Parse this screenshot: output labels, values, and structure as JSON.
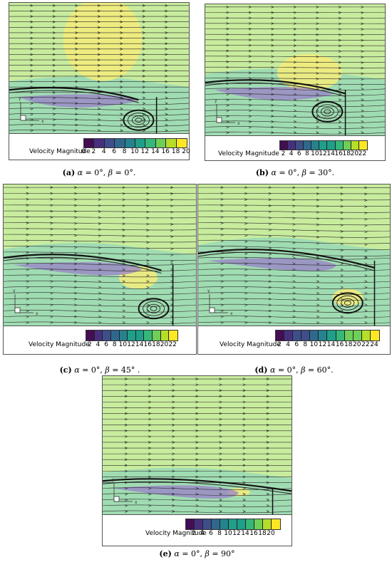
{
  "colormap": [
    "#440d54",
    "#46307e",
    "#3d4e8a",
    "#30688d",
    "#25828e",
    "#1f9e89",
    "#35b779",
    "#6ece58",
    "#b5de2b",
    "#fde725"
  ],
  "colors": {
    "field": "#c8ec9e",
    "teal": "#7fd0c3",
    "purple": "#9a80c8",
    "yellow": "#f4ec7a",
    "panel_border": "#555555"
  },
  "panels": [
    {
      "id": "a",
      "colorbar_label": "Velocity Magnitude",
      "ticks": [
        "0",
        "2",
        "4",
        "6",
        "8",
        "10",
        "12",
        "14",
        "16",
        "18",
        "20"
      ],
      "caption": {
        "letter": "(a)",
        "alpha_sym": "α",
        "alpha_val": " = 0°, ",
        "beta_sym": "β",
        "beta_val": " = 0°."
      }
    },
    {
      "id": "b",
      "colorbar_label": "Velocity Magnitude",
      "ticks": [
        "2",
        "4",
        "6",
        "8",
        "10",
        "12",
        "14",
        "16",
        "18",
        "20",
        "22"
      ],
      "caption": {
        "letter": "(b)",
        "alpha_sym": "α",
        "alpha_val": " = 0°, ",
        "beta_sym": "β",
        "beta_val": " = 30°."
      }
    },
    {
      "id": "c",
      "colorbar_label": "Velocity Magnitude",
      "ticks": [
        "2",
        "4",
        "6",
        "8",
        "10",
        "12",
        "14",
        "16",
        "18",
        "20",
        "22"
      ],
      "caption": {
        "letter": "(c)",
        "alpha_sym": "α",
        "alpha_val": " = 0°, ",
        "beta_sym": "β",
        "beta_val": " = 45° ."
      }
    },
    {
      "id": "d",
      "colorbar_label": "Velocity Magnitude",
      "ticks": [
        "2",
        "4",
        "6",
        "8",
        "10",
        "12",
        "14",
        "16",
        "18",
        "20",
        "22",
        "24"
      ],
      "caption": {
        "letter": "(d)",
        "alpha_sym": "α",
        "alpha_val": " = 0°, ",
        "beta_sym": "β",
        "beta_val": " = 60°."
      }
    },
    {
      "id": "e",
      "colorbar_label": "Velocity Magnitude",
      "ticks": [
        "2",
        "4",
        "6",
        "8",
        "10",
        "12",
        "14",
        "16",
        "18",
        "20"
      ],
      "caption": {
        "letter": "(e)",
        "alpha_sym": "α",
        "alpha_val": " = 0°, ",
        "beta_sym": "β",
        "beta_val": " = 90°"
      }
    }
  ]
}
